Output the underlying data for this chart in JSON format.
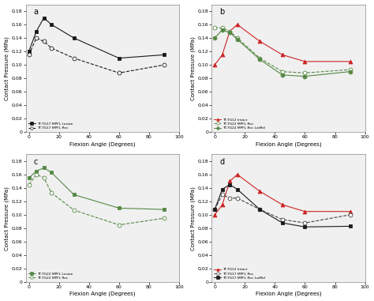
{
  "subplot_a": {
    "label": "a",
    "series": [
      {
        "label": "TT-TG17 MPFL Lesion",
        "x": [
          0,
          5,
          10,
          15,
          30,
          60,
          90
        ],
        "y": [
          0.12,
          0.15,
          0.17,
          0.16,
          0.14,
          0.11,
          0.115
        ],
        "color": "#1a1a1a",
        "linestyle": "-",
        "marker": "s",
        "markerfacecolor": "#1a1a1a",
        "markersize": 3.5
      },
      {
        "label": "TT-TG17 MPFL Rec",
        "x": [
          0,
          5,
          10,
          15,
          30,
          60,
          90
        ],
        "y": [
          0.115,
          0.14,
          0.135,
          0.125,
          0.11,
          0.088,
          0.1
        ],
        "color": "#1a1a1a",
        "linestyle": "--",
        "marker": "o",
        "markerfacecolor": "white",
        "markersize": 3.5
      }
    ],
    "ylim": [
      0,
      0.19
    ],
    "yticks": [
      0,
      0.02,
      0.04,
      0.06,
      0.08,
      0.1,
      0.12,
      0.14,
      0.16,
      0.18
    ],
    "xlabel": "Flexion Angle (Degrees)",
    "ylabel": "Contact Pressure (MPa)"
  },
  "subplot_b": {
    "label": "b",
    "series": [
      {
        "label": "TT-TG12 Intact",
        "x": [
          0,
          5,
          10,
          15,
          30,
          45,
          60,
          90
        ],
        "y": [
          0.1,
          0.115,
          0.15,
          0.16,
          0.135,
          0.115,
          0.105,
          0.105
        ],
        "color": "#cc2222",
        "linestyle": "-",
        "marker": "^",
        "markerfacecolor": "#cc2222",
        "markersize": 3.5
      },
      {
        "label": "TT-TG22 MPFL Rec",
        "x": [
          0,
          5,
          10,
          15,
          30,
          45,
          60,
          90
        ],
        "y": [
          0.155,
          0.155,
          0.15,
          0.14,
          0.11,
          0.09,
          0.088,
          0.093
        ],
        "color": "#558844",
        "linestyle": "--",
        "marker": "o",
        "markerfacecolor": "white",
        "markersize": 3.5
      },
      {
        "label": "TT-TG22 MPFL Rec LatRel",
        "x": [
          0,
          5,
          10,
          15,
          30,
          45,
          60,
          90
        ],
        "y": [
          0.14,
          0.152,
          0.148,
          0.138,
          0.108,
          0.085,
          0.083,
          0.09
        ],
        "color": "#558844",
        "linestyle": "-",
        "marker": "o",
        "markerfacecolor": "#558844",
        "markersize": 3.5
      }
    ],
    "ylim": [
      0,
      0.19
    ],
    "yticks": [
      0,
      0.02,
      0.04,
      0.06,
      0.08,
      0.1,
      0.12,
      0.14,
      0.16,
      0.18
    ],
    "xlabel": "Flexion Angle (Degrees)",
    "ylabel": "Contact Pressure (MPa)"
  },
  "subplot_c": {
    "label": "c",
    "series": [
      {
        "label": "TT-TG22 MPFL Lesion",
        "x": [
          0,
          5,
          10,
          15,
          30,
          60,
          90
        ],
        "y": [
          0.155,
          0.165,
          0.17,
          0.163,
          0.13,
          0.11,
          0.108
        ],
        "color": "#558844",
        "linestyle": "-",
        "marker": "s",
        "markerfacecolor": "#558844",
        "markersize": 3.5
      },
      {
        "label": "TT-TG22 MPFL Rec",
        "x": [
          0,
          5,
          10,
          15,
          30,
          60,
          90
        ],
        "y": [
          0.145,
          0.16,
          0.155,
          0.133,
          0.107,
          0.085,
          0.095
        ],
        "color": "#558844",
        "linestyle": "--",
        "marker": "o",
        "markerfacecolor": "white",
        "markersize": 3.5
      }
    ],
    "ylim": [
      0,
      0.19
    ],
    "yticks": [
      0,
      0.02,
      0.04,
      0.06,
      0.08,
      0.1,
      0.12,
      0.14,
      0.16,
      0.18
    ],
    "xlabel": "Flexion Angle (Degrees)",
    "ylabel": "Contact Pressure (MPa)"
  },
  "subplot_d": {
    "label": "d",
    "series": [
      {
        "label": "TT-TG12 Intact",
        "x": [
          0,
          5,
          10,
          15,
          30,
          45,
          60,
          90
        ],
        "y": [
          0.1,
          0.115,
          0.15,
          0.16,
          0.135,
          0.115,
          0.105,
          0.105
        ],
        "color": "#cc2222",
        "linestyle": "-",
        "marker": "^",
        "markerfacecolor": "#cc2222",
        "markersize": 3.5
      },
      {
        "label": "TT-TG17 MPFL Rec",
        "x": [
          0,
          5,
          10,
          15,
          30,
          45,
          60,
          90
        ],
        "y": [
          0.108,
          0.13,
          0.125,
          0.125,
          0.108,
          0.093,
          0.088,
          0.1
        ],
        "color": "#444444",
        "linestyle": "--",
        "marker": "o",
        "markerfacecolor": "white",
        "markersize": 3.5
      },
      {
        "label": "TT-TG17 MPFL Rec LatRel",
        "x": [
          0,
          5,
          10,
          15,
          30,
          45,
          60,
          90
        ],
        "y": [
          0.108,
          0.138,
          0.145,
          0.138,
          0.108,
          0.088,
          0.082,
          0.083
        ],
        "color": "#1a1a1a",
        "linestyle": "-",
        "marker": "s",
        "markerfacecolor": "#1a1a1a",
        "markersize": 3.5
      }
    ],
    "ylim": [
      0,
      0.19
    ],
    "yticks": [
      0,
      0.02,
      0.04,
      0.06,
      0.08,
      0.1,
      0.12,
      0.14,
      0.16,
      0.18
    ],
    "xlabel": "Flexion Angle (Degrees)",
    "ylabel": "Contact Pressure (MPa)"
  },
  "xticks": [
    0,
    20,
    40,
    60,
    80,
    100
  ],
  "xlim": [
    -2,
    100
  ],
  "bg_color": "#f0f0f0"
}
